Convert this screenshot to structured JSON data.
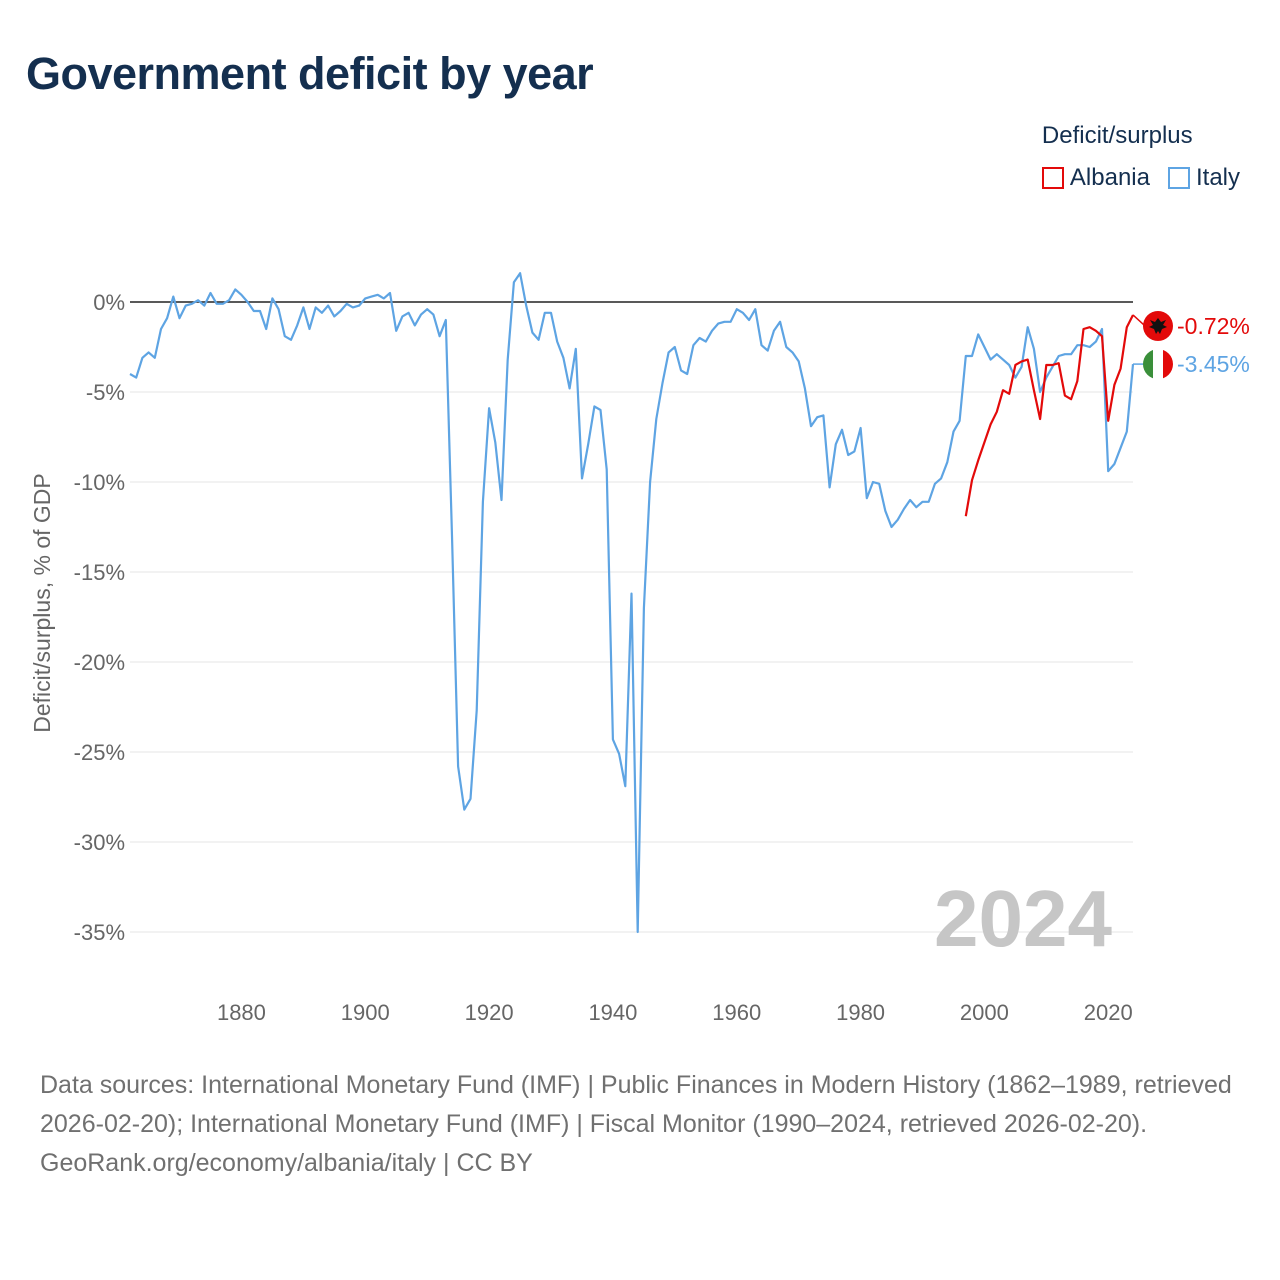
{
  "title": "Government deficit by year",
  "legend": {
    "title": "Deficit/surplus",
    "items": [
      {
        "name": "Albania",
        "color": "#e30a0a"
      },
      {
        "name": "Italy",
        "color": "#5ea4e3"
      }
    ]
  },
  "year_marker": "2024",
  "footer": {
    "sources": "Data sources: International Monetary Fund (IMF) | Public Finances in Modern History (1862–1989, retrieved 2026-02-20); International Monetary Fund (IMF) | Fiscal Monitor (1990–2024, retrieved 2026-02-20).",
    "credit": "GeoRank.org/economy/albania/italy | CC BY"
  },
  "chart_data": {
    "type": "line",
    "title": "Government deficit by year",
    "xlabel": "",
    "ylabel": "Deficit/surplus, % of GDP",
    "xlim": [
      1862,
      2024
    ],
    "ylim": [
      -35,
      2
    ],
    "x_ticks": [
      1880,
      1900,
      1920,
      1940,
      1960,
      1980,
      2000,
      2020
    ],
    "y_ticks": [
      0,
      -5,
      -10,
      -15,
      -20,
      -25,
      -30,
      -35
    ],
    "y_tick_labels": [
      "0%",
      "-5%",
      "-10%",
      "-15%",
      "-20%",
      "-25%",
      "-30%",
      "-35%"
    ],
    "zero_line": true,
    "grid": true,
    "series": [
      {
        "name": "Italy",
        "color": "#5ea4e3",
        "end_label": "-3.45%",
        "x": [
          1862,
          1863,
          1864,
          1865,
          1866,
          1867,
          1868,
          1869,
          1870,
          1871,
          1872,
          1873,
          1874,
          1875,
          1876,
          1877,
          1878,
          1879,
          1880,
          1881,
          1882,
          1883,
          1884,
          1885,
          1886,
          1887,
          1888,
          1889,
          1890,
          1891,
          1892,
          1893,
          1894,
          1895,
          1896,
          1897,
          1898,
          1899,
          1900,
          1901,
          1902,
          1903,
          1904,
          1905,
          1906,
          1907,
          1908,
          1909,
          1910,
          1911,
          1912,
          1913,
          1914,
          1915,
          1916,
          1917,
          1918,
          1919,
          1920,
          1921,
          1922,
          1923,
          1924,
          1925,
          1926,
          1927,
          1928,
          1929,
          1930,
          1931,
          1932,
          1933,
          1934,
          1935,
          1936,
          1937,
          1938,
          1939,
          1940,
          1941,
          1942,
          1943,
          1944,
          1945,
          1946,
          1947,
          1948,
          1949,
          1950,
          1951,
          1952,
          1953,
          1954,
          1955,
          1956,
          1957,
          1958,
          1959,
          1960,
          1961,
          1962,
          1963,
          1964,
          1965,
          1966,
          1967,
          1968,
          1969,
          1970,
          1971,
          1972,
          1973,
          1974,
          1975,
          1976,
          1977,
          1978,
          1979,
          1980,
          1981,
          1982,
          1983,
          1984,
          1985,
          1986,
          1987,
          1988,
          1989,
          1990,
          1991,
          1992,
          1993,
          1994,
          1995,
          1996,
          1997,
          1998,
          1999,
          2000,
          2001,
          2002,
          2003,
          2004,
          2005,
          2006,
          2007,
          2008,
          2009,
          2010,
          2011,
          2012,
          2013,
          2014,
          2015,
          2016,
          2017,
          2018,
          2019,
          2020,
          2021,
          2022,
          2023,
          2024
        ],
        "values": [
          -4.0,
          -4.2,
          -3.1,
          -2.8,
          -3.1,
          -1.5,
          -0.9,
          0.3,
          -0.9,
          -0.2,
          -0.1,
          0.1,
          -0.2,
          0.5,
          -0.1,
          -0.1,
          0.1,
          0.7,
          0.4,
          0.0,
          -0.5,
          -0.5,
          -1.5,
          0.2,
          -0.4,
          -1.9,
          -2.1,
          -1.3,
          -0.3,
          -1.5,
          -0.3,
          -0.6,
          -0.2,
          -0.8,
          -0.5,
          -0.1,
          -0.3,
          -0.2,
          0.2,
          0.3,
          0.4,
          0.2,
          0.5,
          -1.6,
          -0.8,
          -0.6,
          -1.3,
          -0.7,
          -0.4,
          -0.7,
          -1.9,
          -1.0,
          -13.0,
          -25.8,
          -28.2,
          -27.6,
          -22.7,
          -11.1,
          -5.9,
          -7.8,
          -11.0,
          -3.2,
          1.1,
          1.6,
          -0.2,
          -1.7,
          -2.1,
          -0.6,
          -0.6,
          -2.2,
          -3.1,
          -4.8,
          -2.6,
          -9.8,
          -7.9,
          -5.8,
          -6.0,
          -9.3,
          -24.3,
          -25.1,
          -26.9,
          -16.2,
          -35.0,
          -17.0,
          -10.0,
          -6.5,
          -4.5,
          -2.8,
          -2.5,
          -3.8,
          -4.0,
          -2.4,
          -2.0,
          -2.2,
          -1.6,
          -1.2,
          -1.1,
          -1.1,
          -0.4,
          -0.6,
          -1.0,
          -0.4,
          -2.4,
          -2.7,
          -1.6,
          -1.1,
          -2.5,
          -2.8,
          -3.3,
          -4.8,
          -6.9,
          -6.4,
          -6.3,
          -10.3,
          -7.9,
          -7.1,
          -8.5,
          -8.3,
          -7.0,
          -10.9,
          -10.0,
          -10.1,
          -11.6,
          -12.5,
          -12.1,
          -11.5,
          -11.0,
          -11.4,
          -11.1,
          -11.1,
          -10.1,
          -9.8,
          -8.9,
          -7.2,
          -6.6,
          -3.0,
          -3.0,
          -1.8,
          -2.5,
          -3.2,
          -2.9,
          -3.2,
          -3.5,
          -4.2,
          -3.6,
          -1.4,
          -2.6,
          -5.0,
          -4.2,
          -3.6,
          -3.0,
          -2.9,
          -2.9,
          -2.4,
          -2.4,
          -2.5,
          -2.2,
          -1.5,
          -9.4,
          -9.0,
          -8.1,
          -7.2,
          -3.45
        ]
      },
      {
        "name": "Albania",
        "color": "#e30a0a",
        "end_label": "-0.72%",
        "x": [
          1997,
          1998,
          1999,
          2000,
          2001,
          2002,
          2003,
          2004,
          2005,
          2006,
          2007,
          2008,
          2009,
          2010,
          2011,
          2012,
          2013,
          2014,
          2015,
          2016,
          2017,
          2018,
          2019,
          2020,
          2021,
          2022,
          2023,
          2024
        ],
        "values": [
          -11.9,
          -9.9,
          -8.8,
          -7.8,
          -6.8,
          -6.1,
          -4.9,
          -5.1,
          -3.5,
          -3.3,
          -3.2,
          -4.9,
          -6.5,
          -3.5,
          -3.5,
          -3.4,
          -5.2,
          -5.4,
          -4.4,
          -1.5,
          -1.4,
          -1.6,
          -1.9,
          -6.6,
          -4.6,
          -3.7,
          -1.4,
          -0.72
        ]
      }
    ]
  }
}
